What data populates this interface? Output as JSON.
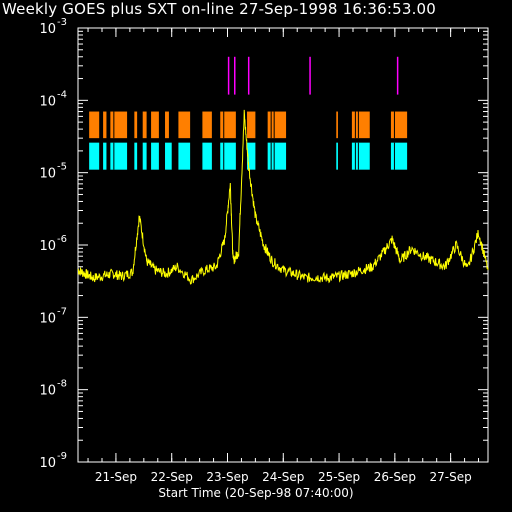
{
  "title": "Weekly GOES plus SXT on-line 27-Sep-1998 16:36:53.00",
  "chart_data": {
    "type": "line",
    "title": "Weekly GOES plus SXT on-line 27-Sep-1998 16:36:53.00",
    "xlabel": "Start Time (20-Sep-98 07:40:00)",
    "ylabel": "",
    "yscale": "log",
    "ylim": [
      1e-09,
      0.001
    ],
    "xlim_days": [
      20.32,
      27.67
    ],
    "x_tick_days": [
      21,
      22,
      23,
      24,
      25,
      26,
      27
    ],
    "x_tick_labels": [
      "21-Sep",
      "22-Sep",
      "23-Sep",
      "24-Sep",
      "25-Sep",
      "26-Sep",
      "27-Sep"
    ],
    "y_ticks": [
      {
        "value": 0.001,
        "base": "10",
        "exp": "-3"
      },
      {
        "value": 0.0001,
        "base": "10",
        "exp": "-4"
      },
      {
        "value": 1e-05,
        "base": "10",
        "exp": "-5"
      },
      {
        "value": 1e-06,
        "base": "10",
        "exp": "-6"
      },
      {
        "value": 1e-07,
        "base": "10",
        "exp": "-7"
      },
      {
        "value": 1e-08,
        "base": "10",
        "exp": "-8"
      },
      {
        "value": 1e-09,
        "base": "10",
        "exp": "-9"
      }
    ],
    "series": [
      {
        "color": "#ffff00",
        "baseline": 3.6e-07,
        "x": [
          20.32,
          20.45,
          20.6,
          20.8,
          20.95,
          21.1,
          21.3,
          21.42,
          21.55,
          21.7,
          21.9,
          22.1,
          22.35,
          22.6,
          22.8,
          22.95,
          23.05,
          23.1,
          23.2,
          23.3,
          23.38,
          23.5,
          23.65,
          23.8,
          24.0,
          24.2,
          24.4,
          24.6,
          24.8,
          25.0,
          25.2,
          25.4,
          25.6,
          25.8,
          25.95,
          26.1,
          26.3,
          26.5,
          26.7,
          26.9,
          27.1,
          27.3,
          27.5,
          27.67
        ],
        "y": [
          4.5e-07,
          4e-07,
          3.5e-07,
          3.8e-07,
          4e-07,
          3.7e-07,
          4.2e-07,
          2.5e-06,
          6e-07,
          4.5e-07,
          4e-07,
          5e-07,
          3.3e-07,
          4.5e-07,
          5e-07,
          1.2e-06,
          7e-06,
          6e-07,
          8e-07,
          6.5e-05,
          1.2e-05,
          2.5e-06,
          1e-06,
          6e-07,
          4.5e-07,
          4e-07,
          3.5e-07,
          3.6e-07,
          3.5e-07,
          3.7e-07,
          4e-07,
          4.5e-07,
          5e-07,
          8e-07,
          1.2e-06,
          6e-07,
          9e-07,
          7e-07,
          6e-07,
          5e-07,
          1e-06,
          4.5e-07,
          1.5e-06,
          4.5e-07
        ]
      }
    ],
    "flare_days": [
      23.02,
      23.13,
      23.38,
      24.48,
      26.05
    ],
    "flare_range": [
      0.00012,
      0.0004
    ],
    "flare_color": "#ff00ff",
    "orange_band": {
      "color": "#ff7f00",
      "range": [
        3e-05,
        7e-05
      ],
      "spans": [
        [
          20.52,
          20.7
        ],
        [
          20.77,
          20.83
        ],
        [
          20.9,
          21.2
        ],
        [
          21.33,
          21.38
        ],
        [
          21.48,
          21.55
        ],
        [
          21.63,
          21.77
        ],
        [
          21.88,
          21.95
        ],
        [
          22.12,
          22.33
        ],
        [
          22.55,
          22.72
        ],
        [
          22.87,
          23.15
        ],
        [
          23.35,
          23.5
        ],
        [
          23.72,
          24.05
        ],
        [
          24.95,
          24.98
        ],
        [
          25.23,
          25.55
        ],
        [
          25.93,
          26.22
        ]
      ],
      "gap_step": 0.03
    },
    "cyan_band": {
      "color": "#00ffff",
      "range": [
        1.1e-05,
        2.6e-05
      ],
      "spans": [
        [
          20.52,
          20.7
        ],
        [
          20.77,
          20.83
        ],
        [
          20.9,
          21.2
        ],
        [
          21.33,
          21.38
        ],
        [
          21.48,
          21.55
        ],
        [
          21.63,
          21.77
        ],
        [
          21.88,
          22.0
        ],
        [
          22.12,
          22.33
        ],
        [
          22.55,
          22.72
        ],
        [
          22.87,
          23.15
        ],
        [
          23.35,
          23.5
        ],
        [
          23.72,
          24.05
        ],
        [
          24.95,
          24.98
        ],
        [
          25.23,
          25.55
        ],
        [
          25.93,
          26.22
        ]
      ]
    }
  }
}
